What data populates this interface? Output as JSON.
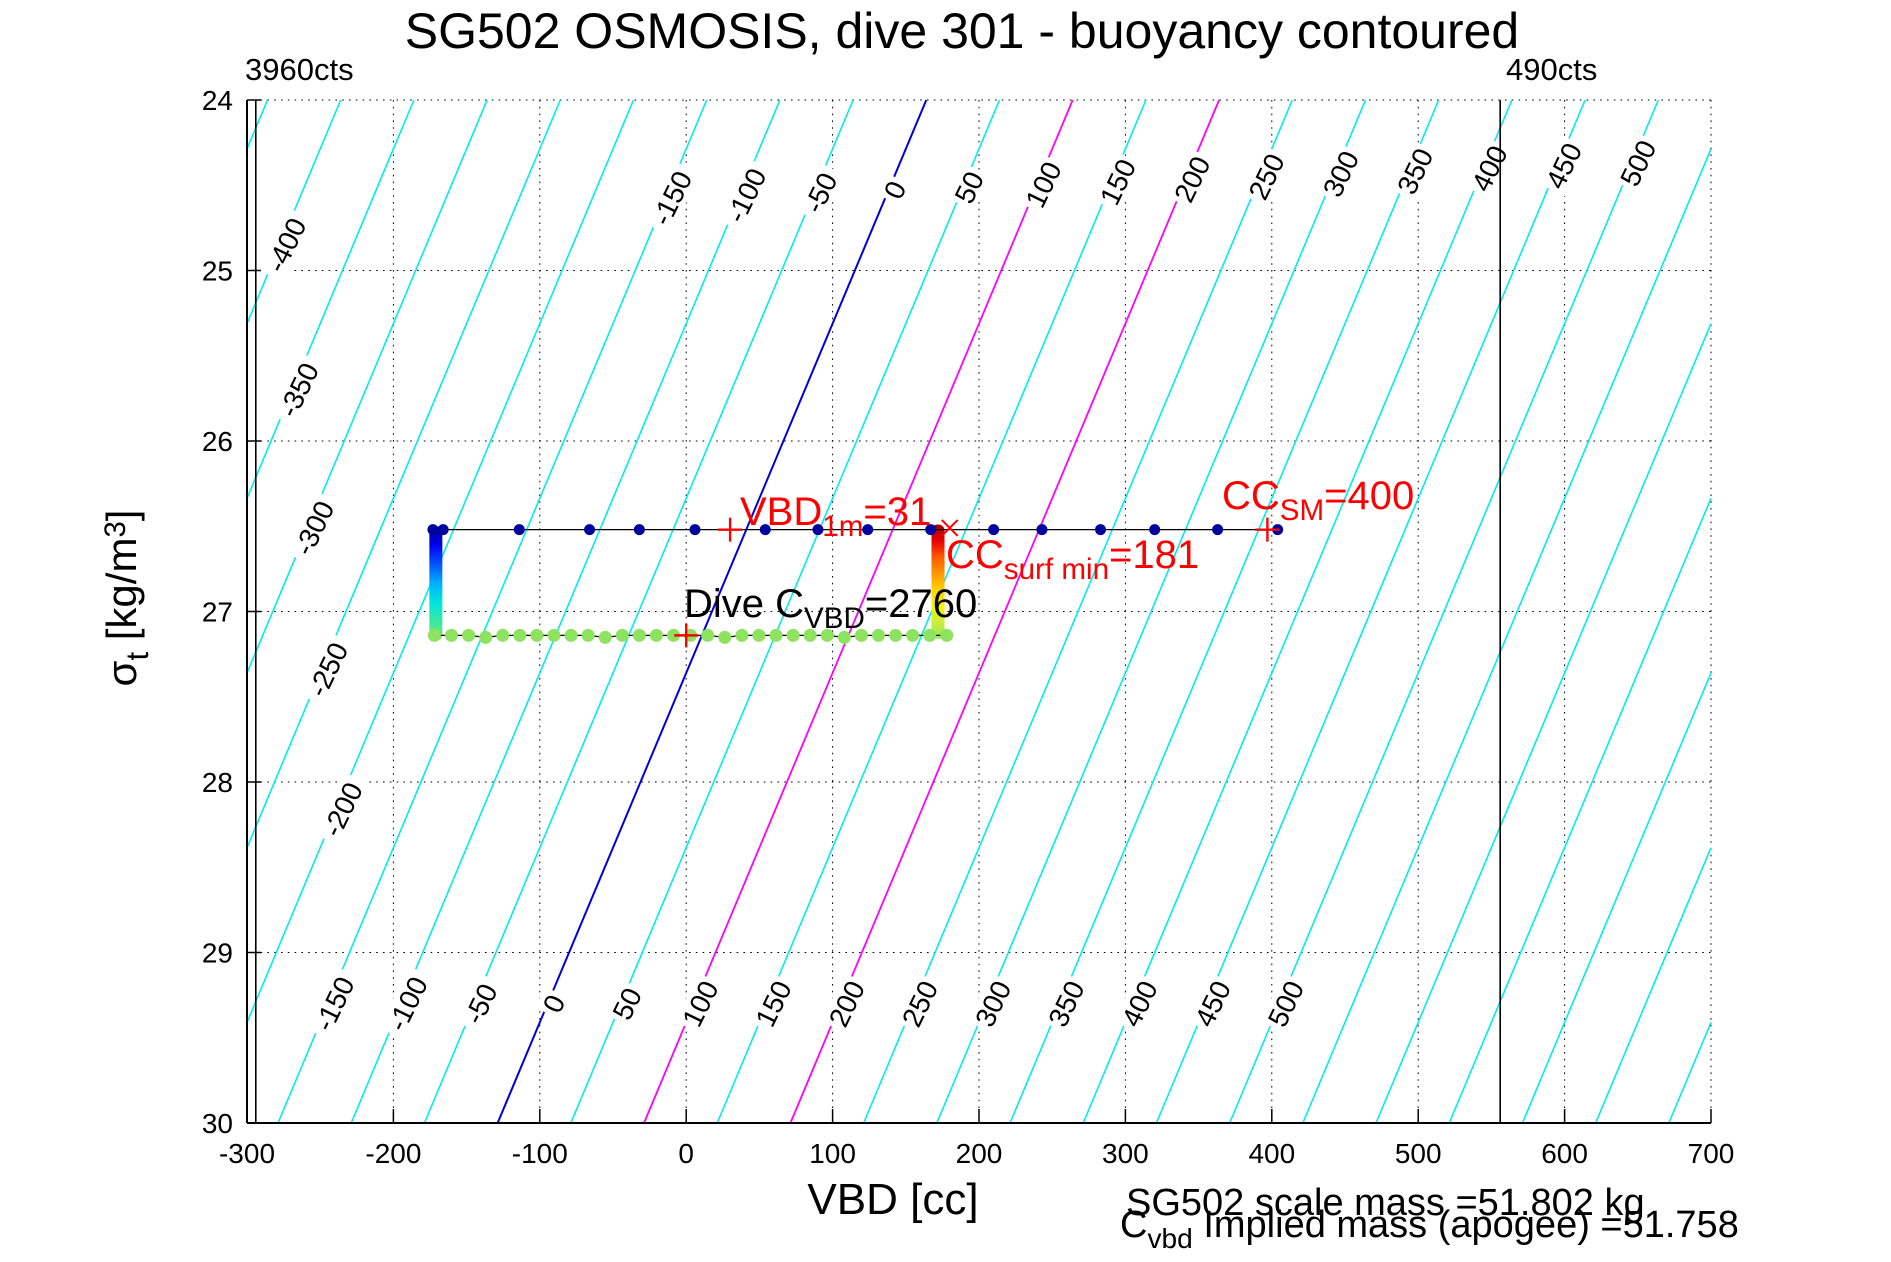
{
  "chart_data": {
    "type": "line",
    "title": "SG502 OSMOSIS, dive 301 - buoyancy contoured",
    "xlabel": "VBD [cc]",
    "ylabel_parts": {
      "main": "σ",
      "sub": "t",
      "rest": " [kg/m",
      "sup": "3",
      "close": "]"
    },
    "xlim": [
      -300,
      700
    ],
    "ylim": [
      24,
      30
    ],
    "y_axis_note": "inverted, 24 at top",
    "xticks": [
      -300,
      -200,
      -100,
      0,
      100,
      200,
      300,
      400,
      500,
      600,
      700
    ],
    "yticks": [
      24,
      25,
      26,
      27,
      28,
      29,
      30
    ],
    "grid": "dotted",
    "contours": {
      "values": [
        -450,
        -400,
        -350,
        -300,
        -250,
        -200,
        -150,
        -100,
        -50,
        0,
        50,
        100,
        150,
        200,
        250,
        300,
        350,
        400,
        450,
        500,
        550,
        600,
        650,
        700,
        750,
        800
      ],
      "vbd_offset_at_sigma24": 164,
      "cc_per_sigma": -48.8,
      "labels_upper": [
        -150,
        -100,
        -50,
        0,
        50,
        100,
        150,
        200,
        250,
        300,
        350,
        400,
        450,
        500
      ],
      "labels_lower": [
        -150,
        -100,
        -50,
        0,
        50,
        100,
        150,
        200,
        250,
        300,
        350,
        400,
        450,
        500
      ],
      "labels_left_values": [
        -400,
        -350,
        -300,
        -250,
        -200
      ],
      "labels_left_sigmas": [
        24.85,
        25.7,
        26.51,
        27.34,
        28.16
      ],
      "lower_label_sigma": 29.3,
      "colors": {
        "default": "#00eded",
        "zero": "#0000d6",
        "magenta": "#ff00ff",
        "magenta_values": [
          100,
          200
        ],
        "black_line": "#000000"
      }
    },
    "vertical_lines": [
      {
        "label": "3960cts",
        "vbd": -294
      },
      {
        "label": "490cts",
        "vbd": 556
      }
    ],
    "series": {
      "surface_line": {
        "name": "surface maneuver points",
        "sigma_t": 26.52,
        "marker_color": "#0000a0",
        "line_color": "#000000",
        "vbd_points": [
          -173,
          -166,
          -114,
          -66,
          -32,
          6,
          54,
          90,
          124,
          167,
          210,
          243,
          283,
          320,
          363,
          404
        ]
      },
      "dive_line": {
        "name": "dive apogee points",
        "sigma_t": 27.14,
        "marker_color": "#8de360",
        "line_color": "#000000",
        "vbd_start": -172,
        "vbd_end": 178,
        "n_markers": 31
      },
      "left_bar": {
        "name": "descent buoyancy-colored profile",
        "vbd": -171,
        "sigma_from": 26.5,
        "sigma_to": 27.17,
        "gradient": [
          "#000090",
          "#0000f0",
          "#0055ff",
          "#00b0ff",
          "#00e4e0",
          "#3be8a0",
          "#7ce870"
        ]
      },
      "right_bar": {
        "name": "ascent buoyancy-colored profile",
        "vbd": 172,
        "sigma_from": 26.49,
        "sigma_to": 27.16,
        "gradient": [
          "#a00000",
          "#e80000",
          "#ff5a00",
          "#ff9600",
          "#ffd200",
          "#f5f500",
          "#c8ee3c",
          "#96e85f"
        ]
      }
    },
    "markers": [
      {
        "shape": "plus",
        "vbd": 30,
        "sigma": 26.52,
        "color": "#ff0000"
      },
      {
        "shape": "x",
        "vbd": 180,
        "sigma": 26.51,
        "color": "#ff0000"
      },
      {
        "shape": "plus",
        "vbd": 397,
        "sigma": 26.52,
        "color": "#ff0000"
      },
      {
        "shape": "plus",
        "vbd": 0,
        "sigma": 27.14,
        "color": "#ff0000"
      }
    ],
    "annotations": {
      "top_left_cts": "3960cts",
      "top_right_cts": "490cts",
      "vbd_1m": {
        "main": "VBD",
        "sub": "1m",
        "value": "=31"
      },
      "cc_surf_min": {
        "main": "CC",
        "sub": "surf min",
        "value": "=181"
      },
      "cc_sm": {
        "main": "CC",
        "sub": "SM",
        "value": "=400"
      },
      "dive_c": {
        "main": "Dive C",
        "sub": "VBD",
        "value": "=2760"
      },
      "scale_mass": "SG502 scale mass =51.802 kg",
      "implied_mass": {
        "main": "C",
        "sub": "vbd",
        "rest": " Implied mass (apogee) =51.758"
      }
    }
  }
}
